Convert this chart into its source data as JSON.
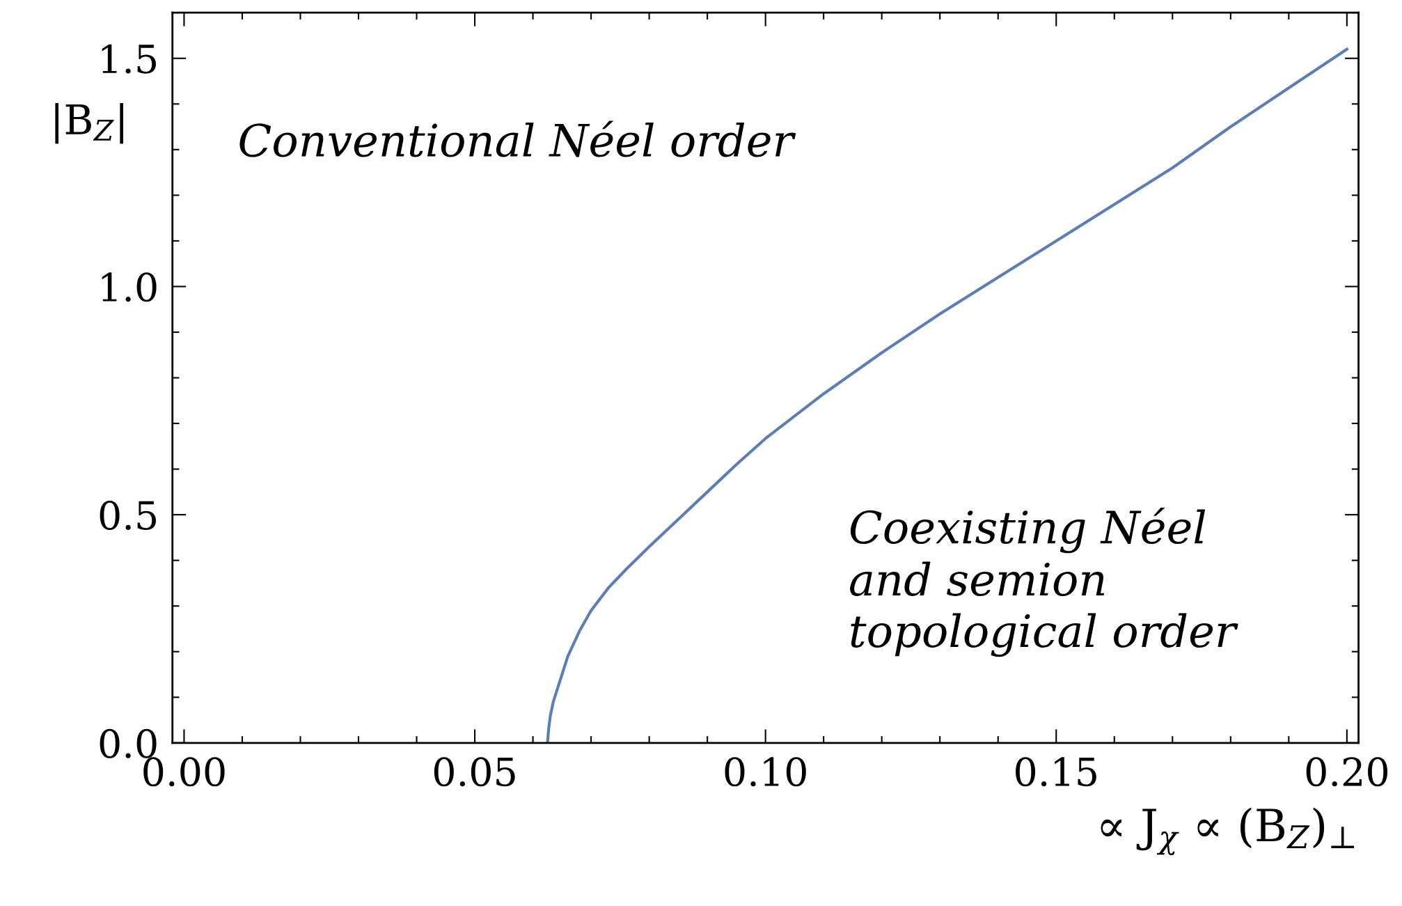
{
  "chart_data": {
    "type": "line",
    "xlabel": "∝ J$_{χ}$ ∝ (B$_{Z}$)$_{⊥}$",
    "ylabel": "|B$_{Z}$|",
    "annotations": [
      "Conventional Néel order",
      "Coexisting Néel\nand semion\ntopological order"
    ],
    "series": [
      {
        "color": "#5a7fb8",
        "x": [
          0.0625,
          0.0627,
          0.063,
          0.0635,
          0.064,
          0.065,
          0.066,
          0.068,
          0.07,
          0.073,
          0.076,
          0.08,
          0.085,
          0.09,
          0.095,
          0.1,
          0.11,
          0.12,
          0.13,
          0.14,
          0.15,
          0.16,
          0.17,
          0.18,
          0.19,
          0.2
        ],
        "values": [
          0.0,
          0.03,
          0.06,
          0.09,
          0.11,
          0.15,
          0.19,
          0.245,
          0.29,
          0.34,
          0.38,
          0.43,
          0.49,
          0.55,
          0.61,
          0.667,
          0.765,
          0.855,
          0.94,
          1.02,
          1.1,
          1.18,
          1.26,
          1.35,
          1.435,
          1.52
        ]
      }
    ],
    "xlim": [
      -0.002,
      0.202
    ],
    "ylim": [
      0,
      1.6
    ],
    "xticks": [
      {
        "value": 0.0,
        "label": "0.00"
      },
      {
        "value": 0.01,
        "label": null
      },
      {
        "value": 0.02,
        "label": null
      },
      {
        "value": 0.03,
        "label": null
      },
      {
        "value": 0.04,
        "label": null
      },
      {
        "value": 0.05,
        "label": "0.05"
      },
      {
        "value": 0.06,
        "label": null
      },
      {
        "value": 0.07,
        "label": null
      },
      {
        "value": 0.08,
        "label": null
      },
      {
        "value": 0.09,
        "label": null
      },
      {
        "value": 0.1,
        "label": "0.10"
      },
      {
        "value": 0.11,
        "label": null
      },
      {
        "value": 0.12,
        "label": null
      },
      {
        "value": 0.13,
        "label": null
      },
      {
        "value": 0.14,
        "label": null
      },
      {
        "value": 0.15,
        "label": "0.15"
      },
      {
        "value": 0.16,
        "label": null
      },
      {
        "value": 0.17,
        "label": null
      },
      {
        "value": 0.18,
        "label": null
      },
      {
        "value": 0.19,
        "label": null
      },
      {
        "value": 0.2,
        "label": "0.20"
      }
    ],
    "yticks": [
      {
        "value": 0.0,
        "label": "0.0"
      },
      {
        "value": 0.1,
        "label": null
      },
      {
        "value": 0.2,
        "label": null
      },
      {
        "value": 0.3,
        "label": null
      },
      {
        "value": 0.4,
        "label": null
      },
      0.5,
      {
        "value": 0.6,
        "label": null
      },
      {
        "value": 0.7,
        "label": null
      },
      {
        "value": 0.8,
        "label": null
      },
      {
        "value": 0.9,
        "label": null
      },
      {
        "value": 1.0,
        "label": "1.0"
      },
      {
        "value": 1.1,
        "label": null
      },
      {
        "value": 1.2,
        "label": null
      },
      {
        "value": 1.3,
        "label": null
      },
      {
        "value": 1.4,
        "label": null
      },
      1.5,
      {
        "value": 1.6,
        "label": null
      }
    ],
    "grid": false,
    "legend": false,
    "marker": "none",
    "line_style": "solid"
  }
}
